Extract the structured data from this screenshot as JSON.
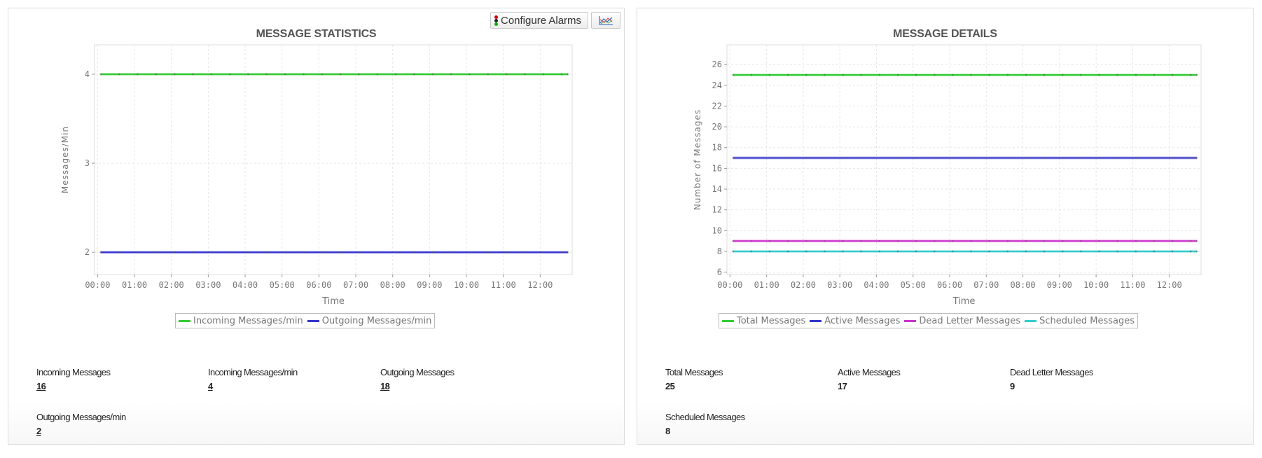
{
  "left_panel": {
    "title": "MESSAGE STATISTICS",
    "configure_alarms_label": "Configure Alarms",
    "configure_alarms_icon": "traffic-light-icon",
    "chart_type_icon": "line-chart-icon",
    "stats": [
      {
        "label": "Incoming Messages",
        "value": "16"
      },
      {
        "label": "Incoming Messages/min",
        "value": "4"
      },
      {
        "label": "Outgoing Messages",
        "value": "18"
      },
      {
        "label": "Outgoing Messages/min",
        "value": "2"
      }
    ]
  },
  "right_panel": {
    "title": "MESSAGE DETAILS",
    "stats": [
      {
        "label": "Total Messages",
        "value": "25"
      },
      {
        "label": "Active Messages",
        "value": "17"
      },
      {
        "label": "Dead Letter Messages",
        "value": "9"
      },
      {
        "label": "Scheduled Messages",
        "value": "8"
      }
    ]
  },
  "chart_data": [
    {
      "type": "line",
      "title": "MESSAGE STATISTICS",
      "xlabel": "Time",
      "ylabel": "Messages/Min",
      "xticks": [
        "00:00",
        "01:00",
        "02:00",
        "03:00",
        "04:00",
        "05:00",
        "06:00",
        "07:00",
        "08:00",
        "09:00",
        "10:00",
        "11:00",
        "12:00"
      ],
      "yticks": [
        2,
        3,
        4
      ],
      "ylim": [
        1.75,
        4.33
      ],
      "grid": true,
      "legend": "bottom",
      "x": [
        "00:05",
        "00:35",
        "01:05",
        "01:35",
        "02:05",
        "02:35",
        "03:05",
        "03:35",
        "04:05",
        "04:35",
        "05:05",
        "05:35",
        "06:05",
        "06:35",
        "07:05",
        "07:35",
        "08:05",
        "08:35",
        "09:05",
        "09:35",
        "10:05",
        "10:35",
        "11:05",
        "11:35",
        "12:05",
        "12:35",
        "12:45"
      ],
      "series": [
        {
          "name": "Incoming Messages/min",
          "color": "#33cc33",
          "values": [
            4,
            4,
            4,
            4,
            4,
            4,
            4,
            4,
            4,
            4,
            4,
            4,
            4,
            4,
            4,
            4,
            4,
            4,
            4,
            4,
            4,
            4,
            4,
            4,
            4,
            4,
            4
          ]
        },
        {
          "name": "Outgoing Messages/min",
          "color": "#3333cc",
          "values": [
            2,
            2,
            2,
            2,
            2,
            2,
            2,
            2,
            2,
            2,
            2,
            2,
            2,
            2,
            2,
            2,
            2,
            2,
            2,
            2,
            2,
            2,
            2,
            2,
            2,
            2,
            2
          ]
        }
      ]
    },
    {
      "type": "line",
      "title": "MESSAGE DETAILS",
      "xlabel": "Time",
      "ylabel": "Number of Messages",
      "xticks": [
        "00:00",
        "01:00",
        "02:00",
        "03:00",
        "04:00",
        "05:00",
        "06:00",
        "07:00",
        "08:00",
        "09:00",
        "10:00",
        "11:00",
        "12:00"
      ],
      "yticks": [
        6,
        8,
        10,
        12,
        14,
        16,
        18,
        20,
        22,
        24,
        26
      ],
      "ylim": [
        5.77,
        27.9
      ],
      "grid": true,
      "legend": "bottom",
      "x": [
        "00:05",
        "00:35",
        "01:05",
        "01:35",
        "02:05",
        "02:35",
        "03:05",
        "03:35",
        "04:05",
        "04:35",
        "05:05",
        "05:35",
        "06:05",
        "06:35",
        "07:05",
        "07:35",
        "08:05",
        "08:35",
        "09:05",
        "09:35",
        "10:05",
        "10:35",
        "11:05",
        "11:35",
        "12:05",
        "12:35",
        "12:45"
      ],
      "series": [
        {
          "name": "Total Messages",
          "color": "#33cc33",
          "values": [
            25,
            25,
            25,
            25,
            25,
            25,
            25,
            25,
            25,
            25,
            25,
            25,
            25,
            25,
            25,
            25,
            25,
            25,
            25,
            25,
            25,
            25,
            25,
            25,
            25,
            25,
            25
          ]
        },
        {
          "name": "Active Messages",
          "color": "#3333cc",
          "values": [
            17,
            17,
            17,
            17,
            17,
            17,
            17,
            17,
            17,
            17,
            17,
            17,
            17,
            17,
            17,
            17,
            17,
            17,
            17,
            17,
            17,
            17,
            17,
            17,
            17,
            17,
            17
          ]
        },
        {
          "name": "Dead Letter Messages",
          "color": "#cc33cc",
          "values": [
            9,
            9,
            9,
            9,
            9,
            9,
            9,
            9,
            9,
            9,
            9,
            9,
            9,
            9,
            9,
            9,
            9,
            9,
            9,
            9,
            9,
            9,
            9,
            9,
            9,
            9,
            9
          ]
        },
        {
          "name": "Scheduled Messages",
          "color": "#33cccc",
          "values": [
            8,
            8,
            8,
            8,
            8,
            8,
            8,
            8,
            8,
            8,
            8,
            8,
            8,
            8,
            8,
            8,
            8,
            8,
            8,
            8,
            8,
            8,
            8,
            8,
            8,
            8,
            8
          ]
        }
      ]
    }
  ]
}
